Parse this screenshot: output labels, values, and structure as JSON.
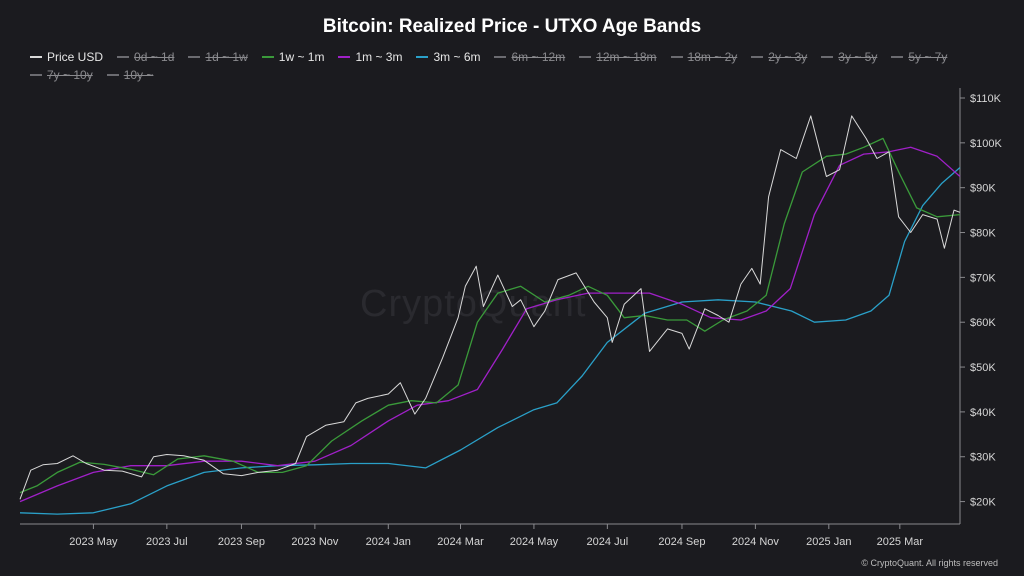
{
  "chart_data": {
    "type": "line",
    "title": "Bitcoin: Realized Price - UTXO Age Bands",
    "xlabel": "",
    "ylabel": "",
    "x_range": [
      "2023-03-01",
      "2025-04-20"
    ],
    "ylim": [
      15000,
      110000
    ],
    "y_ticks": [
      20000,
      30000,
      40000,
      50000,
      60000,
      70000,
      80000,
      90000,
      100000,
      110000
    ],
    "y_tick_labels": [
      "$20K",
      "$30K",
      "$40K",
      "$50K",
      "$60K",
      "$70K",
      "$80K",
      "$90K",
      "$100K",
      "$110K"
    ],
    "x_ticks": [
      "2023-05-01",
      "2023-07-01",
      "2023-09-01",
      "2023-11-01",
      "2024-01-01",
      "2024-03-01",
      "2024-05-01",
      "2024-07-01",
      "2024-09-01",
      "2024-11-01",
      "2025-01-01",
      "2025-03-01"
    ],
    "x_tick_labels": [
      "2023 May",
      "2023 Jul",
      "2023 Sep",
      "2023 Nov",
      "2024 Jan",
      "2024 Mar",
      "2024 May",
      "2024 Jul",
      "2024 Sep",
      "2024 Nov",
      "2025 Jan",
      "2025 Mar"
    ],
    "grid": false,
    "legend_position": "top",
    "legend": [
      {
        "label": "Price USD",
        "color": "#d9d9d9",
        "visible": true
      },
      {
        "label": "0d ~ 1d",
        "color": "#6b6b70",
        "visible": false
      },
      {
        "label": "1d ~ 1w",
        "color": "#6b6b70",
        "visible": false
      },
      {
        "label": "1w ~ 1m",
        "color": "#3a9a3a",
        "visible": true
      },
      {
        "label": "1m ~ 3m",
        "color": "#a020c8",
        "visible": true
      },
      {
        "label": "3m ~ 6m",
        "color": "#2aa0c8",
        "visible": true
      },
      {
        "label": "6m ~ 12m",
        "color": "#6b6b70",
        "visible": false
      },
      {
        "label": "12m ~ 18m",
        "color": "#6b6b70",
        "visible": false
      },
      {
        "label": "18m ~ 2y",
        "color": "#6b6b70",
        "visible": false
      },
      {
        "label": "2y ~ 3y",
        "color": "#6b6b70",
        "visible": false
      },
      {
        "label": "3y ~ 5y",
        "color": "#6b6b70",
        "visible": false
      },
      {
        "label": "5y ~ 7y",
        "color": "#6b6b70",
        "visible": false
      },
      {
        "label": "7y ~ 10y",
        "color": "#6b6b70",
        "visible": false
      },
      {
        "label": "10y ~",
        "color": "#6b6b70",
        "visible": false
      }
    ],
    "series": [
      {
        "name": "Price USD",
        "color": "#d9d9d9",
        "x": [
          "2023-03-01",
          "2023-03-10",
          "2023-03-20",
          "2023-04-01",
          "2023-04-14",
          "2023-04-25",
          "2023-05-10",
          "2023-05-25",
          "2023-06-10",
          "2023-06-20",
          "2023-07-01",
          "2023-07-15",
          "2023-08-01",
          "2023-08-17",
          "2023-09-01",
          "2023-09-15",
          "2023-10-01",
          "2023-10-16",
          "2023-10-25",
          "2023-11-10",
          "2023-11-25",
          "2023-12-05",
          "2023-12-15",
          "2024-01-01",
          "2024-01-11",
          "2024-01-23",
          "2024-02-01",
          "2024-02-15",
          "2024-02-28",
          "2024-03-05",
          "2024-03-14",
          "2024-03-20",
          "2024-04-01",
          "2024-04-13",
          "2024-04-20",
          "2024-05-01",
          "2024-05-10",
          "2024-05-21",
          "2024-06-05",
          "2024-06-20",
          "2024-07-01",
          "2024-07-05",
          "2024-07-15",
          "2024-07-29",
          "2024-08-05",
          "2024-08-20",
          "2024-09-01",
          "2024-09-07",
          "2024-09-20",
          "2024-10-01",
          "2024-10-10",
          "2024-10-20",
          "2024-10-29",
          "2024-11-05",
          "2024-11-12",
          "2024-11-22",
          "2024-12-05",
          "2024-12-17",
          "2024-12-30",
          "2025-01-10",
          "2025-01-20",
          "2025-02-01",
          "2025-02-10",
          "2025-02-20",
          "2025-02-28",
          "2025-03-10",
          "2025-03-20",
          "2025-04-01",
          "2025-04-07",
          "2025-04-15",
          "2025-04-20"
        ],
        "values": [
          20500,
          27000,
          28200,
          28500,
          30200,
          28500,
          27000,
          26800,
          25500,
          30000,
          30500,
          30200,
          29200,
          26200,
          25800,
          26500,
          27000,
          28500,
          34500,
          37000,
          37800,
          42000,
          43000,
          44000,
          46500,
          39500,
          43000,
          52000,
          61000,
          68000,
          72500,
          63500,
          70500,
          63500,
          65000,
          59000,
          62500,
          69500,
          71000,
          64500,
          61000,
          55500,
          64000,
          67500,
          53500,
          58500,
          57500,
          54000,
          63000,
          61500,
          60000,
          68500,
          72000,
          68500,
          88000,
          98500,
          96500,
          106000,
          92500,
          94000,
          106000,
          101000,
          96500,
          98000,
          83500,
          80000,
          84000,
          83000,
          76500,
          85000,
          84500
        ]
      },
      {
        "name": "1w ~ 1m",
        "color": "#3a9a3a",
        "x": [
          "2023-03-01",
          "2023-03-15",
          "2023-04-01",
          "2023-04-20",
          "2023-05-10",
          "2023-06-01",
          "2023-06-20",
          "2023-07-10",
          "2023-08-01",
          "2023-08-25",
          "2023-09-15",
          "2023-10-05",
          "2023-10-25",
          "2023-11-15",
          "2023-12-10",
          "2024-01-01",
          "2024-01-20",
          "2024-02-10",
          "2024-02-28",
          "2024-03-15",
          "2024-04-01",
          "2024-04-20",
          "2024-05-10",
          "2024-05-30",
          "2024-06-15",
          "2024-07-01",
          "2024-07-15",
          "2024-08-01",
          "2024-08-20",
          "2024-09-05",
          "2024-09-20",
          "2024-10-05",
          "2024-10-25",
          "2024-11-10",
          "2024-11-25",
          "2024-12-10",
          "2024-12-30",
          "2025-01-15",
          "2025-01-30",
          "2025-02-15",
          "2025-03-01",
          "2025-03-15",
          "2025-04-01",
          "2025-04-20"
        ],
        "values": [
          22000,
          23500,
          26500,
          28800,
          28300,
          27200,
          26000,
          29500,
          30200,
          29000,
          26500,
          26500,
          28000,
          33500,
          38000,
          41500,
          42500,
          42000,
          46000,
          60000,
          66500,
          68000,
          64500,
          66000,
          68000,
          66000,
          61000,
          61500,
          60500,
          60500,
          58000,
          60500,
          62500,
          66000,
          82000,
          93500,
          97000,
          97500,
          99000,
          101000,
          93000,
          85500,
          83500,
          84000
        ]
      },
      {
        "name": "1m ~ 3m",
        "color": "#a020c8",
        "x": [
          "2023-03-01",
          "2023-04-01",
          "2023-05-01",
          "2023-06-01",
          "2023-07-01",
          "2023-08-01",
          "2023-09-01",
          "2023-10-01",
          "2023-11-01",
          "2023-12-01",
          "2024-01-01",
          "2024-01-25",
          "2024-02-20",
          "2024-03-15",
          "2024-04-05",
          "2024-04-25",
          "2024-05-20",
          "2024-06-15",
          "2024-07-10",
          "2024-08-05",
          "2024-09-01",
          "2024-09-25",
          "2024-10-20",
          "2024-11-10",
          "2024-11-30",
          "2024-12-20",
          "2025-01-10",
          "2025-01-30",
          "2025-02-20",
          "2025-03-10",
          "2025-04-01",
          "2025-04-20"
        ],
        "values": [
          20000,
          23500,
          26500,
          28000,
          28000,
          29000,
          29000,
          28000,
          29000,
          32500,
          38000,
          41500,
          42500,
          45000,
          54000,
          63000,
          65000,
          66500,
          66500,
          66500,
          64000,
          61000,
          60500,
          62500,
          67500,
          84000,
          95000,
          97500,
          98000,
          99000,
          97000,
          92500
        ]
      },
      {
        "name": "3m ~ 6m",
        "color": "#2aa0c8",
        "x": [
          "2023-03-01",
          "2023-04-01",
          "2023-05-01",
          "2023-06-01",
          "2023-07-01",
          "2023-08-01",
          "2023-09-01",
          "2023-10-01",
          "2023-11-01",
          "2023-12-01",
          "2024-01-01",
          "2024-02-01",
          "2024-03-01",
          "2024-04-01",
          "2024-05-01",
          "2024-05-20",
          "2024-06-10",
          "2024-07-01",
          "2024-08-01",
          "2024-09-01",
          "2024-10-01",
          "2024-11-01",
          "2024-12-01",
          "2024-12-20",
          "2025-01-15",
          "2025-02-05",
          "2025-02-20",
          "2025-03-05",
          "2025-03-20",
          "2025-04-05",
          "2025-04-20"
        ],
        "values": [
          17500,
          17200,
          17500,
          19500,
          23500,
          26500,
          27500,
          28000,
          28200,
          28500,
          28500,
          27500,
          31500,
          36500,
          40500,
          42000,
          48000,
          55500,
          62000,
          64500,
          65000,
          64500,
          62500,
          60000,
          60500,
          62500,
          66000,
          78000,
          86000,
          91000,
          94500
        ]
      }
    ]
  },
  "watermark": "CryptoQuant",
  "credit": "© CryptoQuant. All rights reserved"
}
